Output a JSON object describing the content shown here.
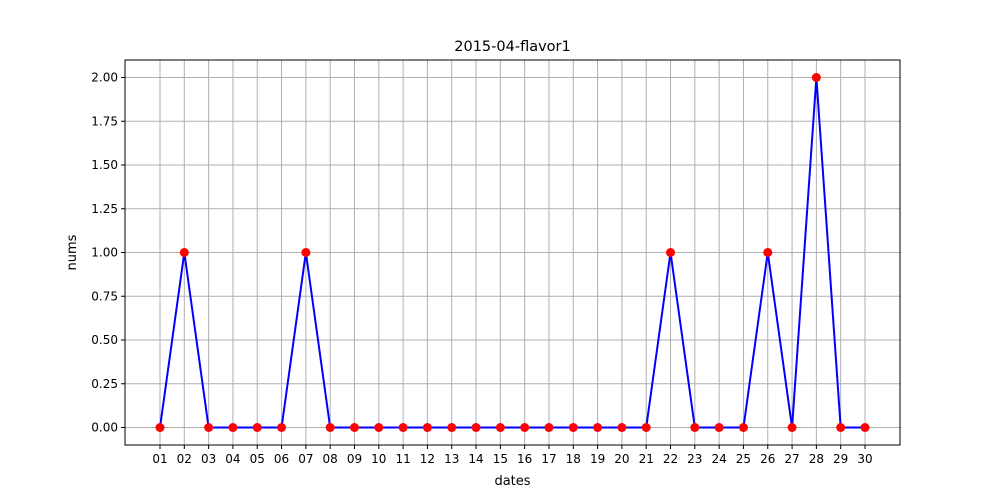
{
  "chart_data": {
    "type": "line",
    "title": "2015-04-flavor1",
    "xlabel": "dates",
    "ylabel": "nums",
    "categories": [
      "01",
      "02",
      "03",
      "04",
      "05",
      "06",
      "07",
      "08",
      "09",
      "10",
      "11",
      "12",
      "13",
      "14",
      "15",
      "16",
      "17",
      "18",
      "19",
      "20",
      "21",
      "22",
      "23",
      "24",
      "25",
      "26",
      "27",
      "28",
      "29",
      "30"
    ],
    "series": [
      {
        "values": [
          0,
          1,
          0,
          0,
          0,
          0,
          1,
          0,
          0,
          0,
          0,
          0,
          0,
          0,
          0,
          0,
          0,
          0,
          0,
          0,
          0,
          1,
          0,
          0,
          0,
          1,
          0,
          2,
          0,
          0
        ],
        "line_color": "#0000ff",
        "marker_color": "#ff0000"
      }
    ],
    "ylim": [
      -0.1,
      2.1
    ],
    "yticks": [
      "0.00",
      "0.25",
      "0.50",
      "0.75",
      "1.00",
      "1.25",
      "1.50",
      "1.75",
      "2.00"
    ],
    "grid": true,
    "legend": "none"
  }
}
